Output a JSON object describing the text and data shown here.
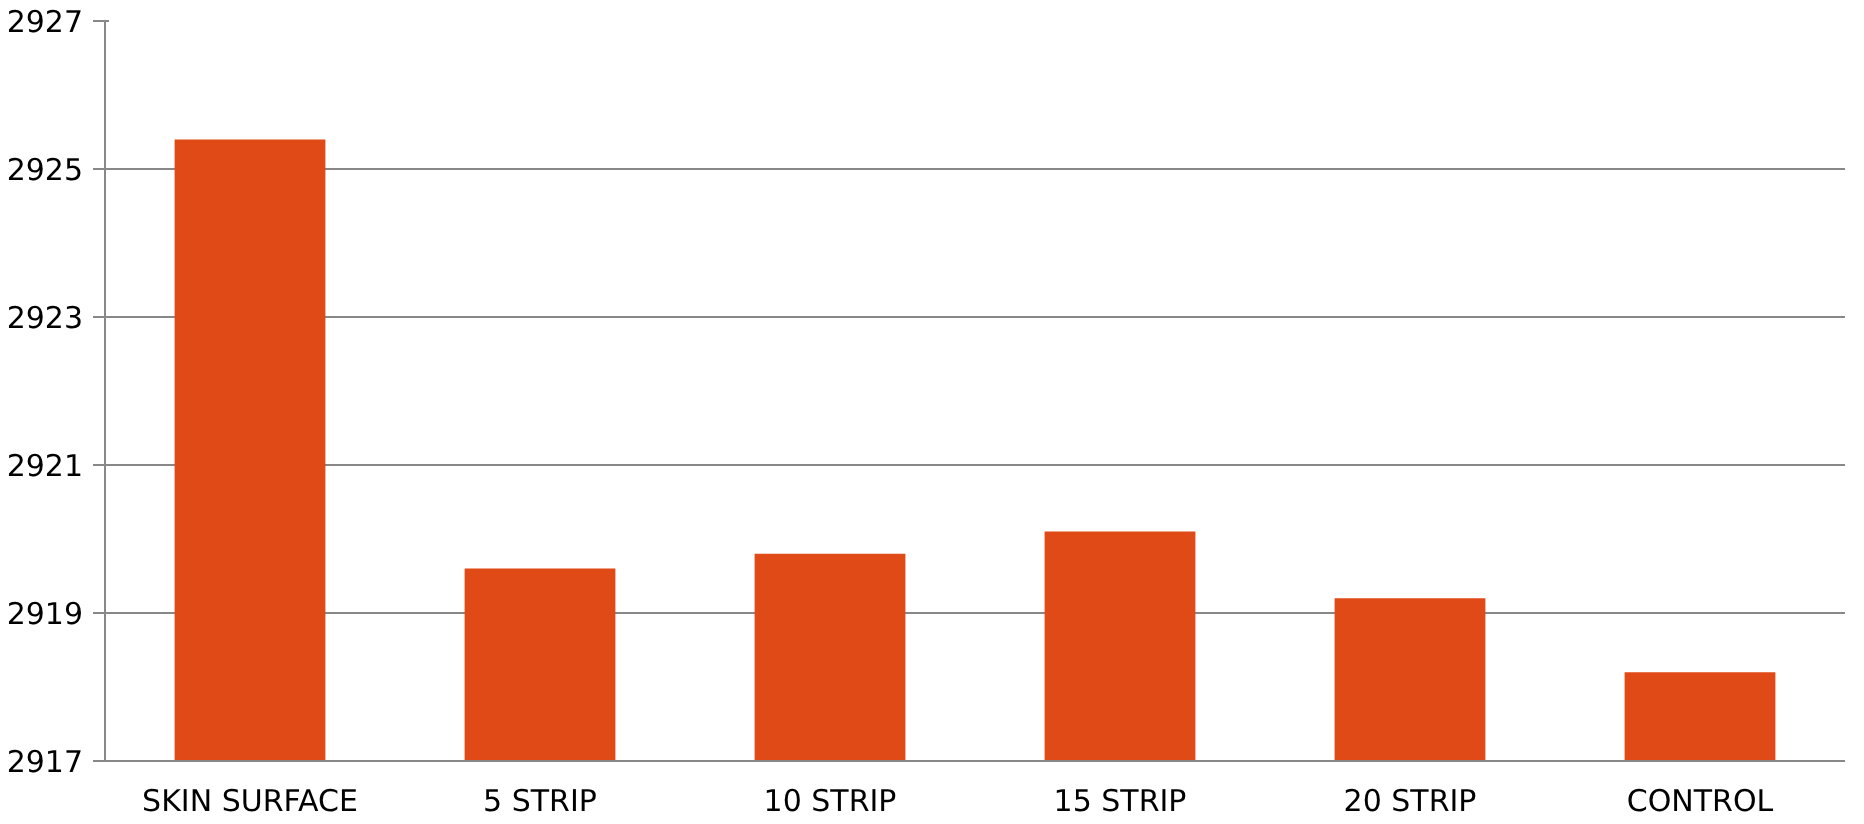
{
  "chart_data": {
    "type": "bar",
    "categories": [
      "SKIN SURFACE",
      "5 STRIP",
      "10 STRIP",
      "15 STRIP",
      "20 STRIP",
      "CONTROL"
    ],
    "values": [
      2925.4,
      2919.6,
      2919.8,
      2920.1,
      2919.2,
      2918.2
    ],
    "color": "#e04a17",
    "ylim": [
      2917,
      2927
    ],
    "yticks": [
      2917,
      2919,
      2921,
      2923,
      2925,
      2927
    ],
    "grid": "y"
  }
}
